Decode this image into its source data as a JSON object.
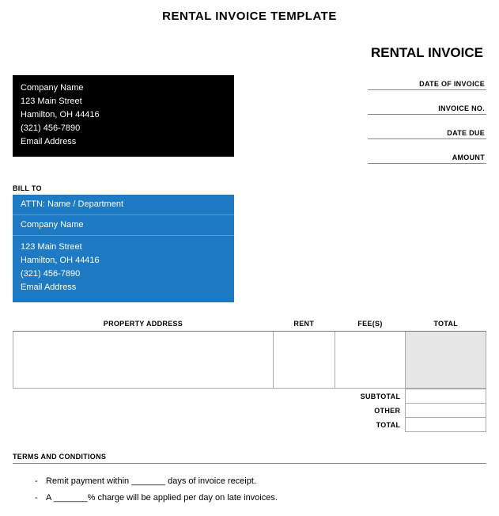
{
  "page_title": "RENTAL INVOICE TEMPLATE",
  "doc_title": "RENTAL INVOICE",
  "company": {
    "name": "Company Name",
    "street": "123 Main Street",
    "city_line": "Hamilton, OH  44416",
    "phone": "(321) 456-7890",
    "email": "Email Address"
  },
  "meta": {
    "date_of_invoice_label": "DATE OF INVOICE",
    "invoice_no_label": "INVOICE NO.",
    "date_due_label": "DATE DUE",
    "amount_label": "AMOUNT"
  },
  "bill_to_label": "BILL TO",
  "bill_to": {
    "attn": "ATTN: Name / Department",
    "company": "Company Name",
    "street": "123 Main Street",
    "city_line": "Hamilton, OH  44416",
    "phone": "(321) 456-7890",
    "email": "Email Address"
  },
  "columns": {
    "property_address": "PROPERTY ADDRESS",
    "rent": "RENT",
    "fees": "FEE(S)",
    "total": "TOTAL"
  },
  "totals": {
    "subtotal_label": "SUBTOTAL",
    "other_label": "OTHER",
    "total_label": "TOTAL"
  },
  "terms_header": "TERMS AND CONDITIONS",
  "terms": {
    "line1": "Remit payment within _______ days of invoice receipt.",
    "line2": "A _______% charge will be applied per day on late invoices."
  },
  "colors": {
    "company_bg": "#000000",
    "bill_bg": "#1f7ac4",
    "total_col_bg": "#e6e6e6",
    "border": "#aaaaaa"
  }
}
